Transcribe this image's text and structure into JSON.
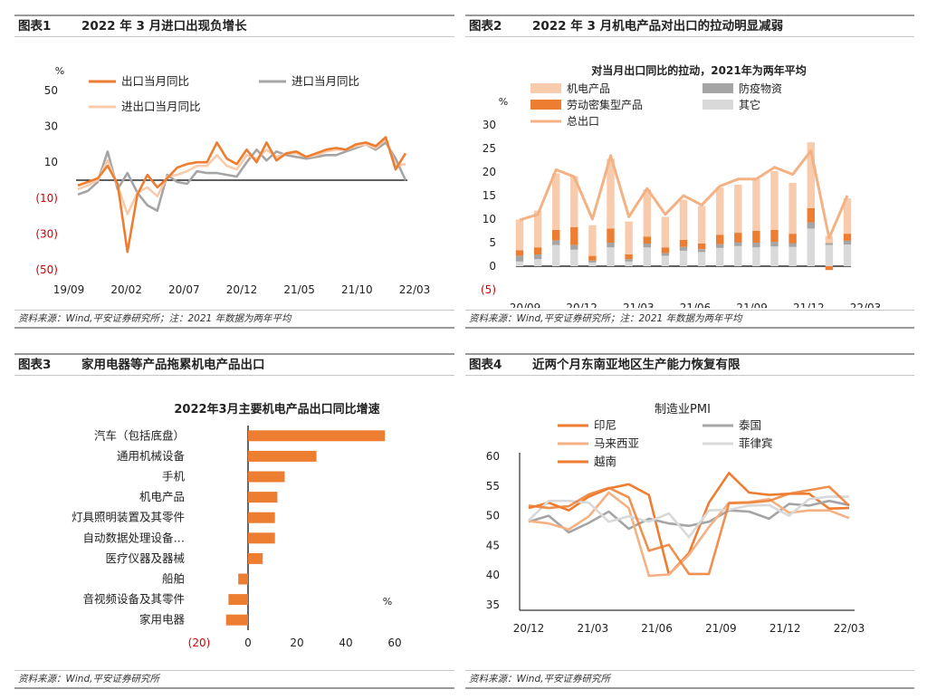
{
  "colors": {
    "orange": "#ED7D31",
    "gray": "#A5A5A5",
    "light_orange": "#F8CBAD",
    "salmon": "#F4B183",
    "light_gray": "#D9D9D9",
    "negative": "#D00000"
  },
  "fig1": {
    "num": "图表1",
    "title": "2022 年 3 月进口出现负增长",
    "source": "资料来源：Wind,平安证券研究所；注：2021 年数据为两年平均",
    "chart_data": {
      "type": "line",
      "unit": "%",
      "x_ticks": [
        "19/09",
        "20/02",
        "20/07",
        "20/12",
        "21/05",
        "21/10",
        "22/03"
      ],
      "y_ticks": [
        "50",
        "30",
        "10",
        "(10)",
        "(30)",
        "(50)"
      ],
      "ylim": [
        -50,
        50
      ],
      "series": [
        {
          "name": "出口当月同比",
          "values": [
            -3,
            -1,
            1,
            8,
            -2,
            -40,
            -8,
            3,
            -4,
            1,
            7,
            9,
            10,
            10,
            21,
            12,
            9,
            17,
            10,
            21,
            11,
            15,
            16,
            13,
            15,
            17,
            18,
            17,
            20,
            21,
            19,
            24,
            6,
            15
          ]
        },
        {
          "name": "进口当月同比",
          "values": [
            -8,
            -6,
            -1,
            16,
            -5,
            4,
            -7,
            -14,
            -17,
            3,
            -1,
            -2,
            5,
            4,
            4,
            3,
            2,
            10,
            17,
            11,
            16,
            14,
            13,
            12,
            13,
            14,
            14,
            16,
            18,
            20,
            17,
            21,
            12,
            0
          ]
        },
        {
          "name": "进出口当月同比",
          "values": [
            -5,
            -3,
            0,
            11,
            -3,
            -19,
            -7,
            -4,
            -9,
            2,
            3,
            5,
            8,
            8,
            14,
            8,
            6,
            14,
            12,
            17,
            13,
            15,
            15,
            13,
            14,
            16,
            17,
            17,
            19,
            20,
            18,
            23,
            8,
            9
          ]
        }
      ]
    }
  },
  "fig2": {
    "num": "图表2",
    "title": "2022 年 3 月机电产品对出口的拉动明显减弱",
    "source": "资料来源：Wind,平安证券研究所；注：2021 年数据为两年平均",
    "chart_data": {
      "type": "bar",
      "subtitle": "对当月出口同比的拉动，2021年为两年平均",
      "unit": "%",
      "x_ticks": [
        "20/09",
        "20/12",
        "21/03",
        "21/06",
        "21/09",
        "21/12",
        "22/03"
      ],
      "y_ticks": [
        "30",
        "25",
        "20",
        "15",
        "10",
        "5",
        "0",
        "(5)"
      ],
      "ylim": [
        -5,
        30
      ],
      "series": [
        {
          "name": "机电产品",
          "values": [
            6.5,
            7.8,
            12.0,
            10.8,
            6.5,
            14.8,
            7.0,
            10.0,
            6.5,
            8.5,
            8.0,
            10.0,
            10.2,
            11.0,
            12.5,
            10.8,
            14.0,
            1.5,
            7.5
          ]
        },
        {
          "name": "劳动密集型产品",
          "values": [
            1.2,
            1.5,
            2.2,
            3.8,
            1.0,
            3.0,
            1.0,
            1.5,
            1.2,
            1.5,
            1.2,
            2.0,
            2.0,
            2.5,
            2.5,
            2.0,
            3.0,
            -0.8,
            1.5
          ]
        },
        {
          "name": "防疫物资",
          "values": [
            1.2,
            1.0,
            1.0,
            1.0,
            0.4,
            1.0,
            0.5,
            0.8,
            0.6,
            0.8,
            0.6,
            0.8,
            0.8,
            1.0,
            1.0,
            0.8,
            1.3,
            0.4,
            0.8
          ]
        },
        {
          "name": "其它",
          "values": [
            1.0,
            1.5,
            4.5,
            3.5,
            0.8,
            4.0,
            1.0,
            4.0,
            2.2,
            3.3,
            3.0,
            3.9,
            4.3,
            4.0,
            4.2,
            4.1,
            8.0,
            4.5,
            4.6
          ]
        },
        {
          "name": "总出口",
          "values": [
            9.8,
            11.0,
            20.5,
            19.0,
            10.0,
            23.5,
            10.5,
            16.5,
            11.0,
            15.0,
            13.0,
            17.0,
            18.5,
            18.5,
            21.0,
            19.5,
            24.5,
            6.0,
            15.0
          ]
        }
      ]
    }
  },
  "fig3": {
    "num": "图表3",
    "title": "家用电器等产品拖累机电产品出口",
    "source": "资料来源：Wind,平安证券研究所",
    "chart_data": {
      "type": "bar",
      "orientation": "horizontal",
      "subtitle": "2022年3月主要机电产品出口同比增速",
      "unit": "%",
      "categories": [
        "汽车（包括底盘）",
        "通用机械设备",
        "手机",
        "机电产品",
        "灯具照明装置及其零件",
        "自动数据处理设备…",
        "医疗仪器及器械",
        "船舶",
        "音视频设备及其零件",
        "家用电器"
      ],
      "values": [
        56,
        28,
        15,
        12,
        11,
        11,
        6,
        -4,
        -8,
        -9
      ],
      "x_ticks": [
        "(20)",
        "0",
        "20",
        "40",
        "60"
      ],
      "xlim": [
        -20,
        60
      ]
    }
  },
  "fig4": {
    "num": "图表4",
    "title": "近两个月东南亚地区生产能力恢复有限",
    "source": "资料来源：Wind,平安证券研究所",
    "chart_data": {
      "type": "line",
      "subtitle": "制造业PMI",
      "x_ticks": [
        "20/12",
        "21/03",
        "21/06",
        "21/09",
        "21/12",
        "22/03"
      ],
      "y_ticks": [
        "60",
        "55",
        "50",
        "45",
        "40",
        "35"
      ],
      "ylim": [
        35,
        60
      ],
      "series": [
        {
          "name": "印尼",
          "values": [
            51.3,
            52.2,
            50.9,
            53.2,
            54.6,
            55.3,
            53.5,
            40.1,
            43.7,
            52.2,
            57.2,
            53.9,
            53.5,
            53.7,
            53.7,
            51.2,
            51.3
          ]
        },
        {
          "name": "泰国",
          "values": [
            49.0,
            50.0,
            47.2,
            48.8,
            50.7,
            47.8,
            49.5,
            48.7,
            48.3,
            49.0,
            50.9,
            50.7,
            49.5,
            52.0,
            51.7,
            52.5,
            51.8
          ]
        },
        {
          "name": "马来西亚",
          "values": [
            49.1,
            48.7,
            47.7,
            49.9,
            53.9,
            51.3,
            39.9,
            40.1,
            43.4,
            48.1,
            52.2,
            52.3,
            52.8,
            50.5,
            50.9,
            50.9,
            49.6
          ]
        },
        {
          "name": "菲律宾",
          "values": [
            49.2,
            52.5,
            52.5,
            52.2,
            49.0,
            49.9,
            49.0,
            50.4,
            46.4,
            50.9,
            51.0,
            51.7,
            51.8,
            50.0,
            52.8,
            53.2,
            53.2
          ]
        },
        {
          "name": "越南",
          "values": [
            51.7,
            51.3,
            51.6,
            53.6,
            54.7,
            53.1,
            44.1,
            45.1,
            40.2,
            40.2,
            52.1,
            52.2,
            52.5,
            53.7,
            54.3,
            54.9,
            51.7
          ]
        }
      ]
    }
  },
  "fig2_xrange": [
    0,
    18
  ],
  "fig1_xrange": [
    0,
    33
  ],
  "fig4_xrange": [
    0,
    16
  ]
}
